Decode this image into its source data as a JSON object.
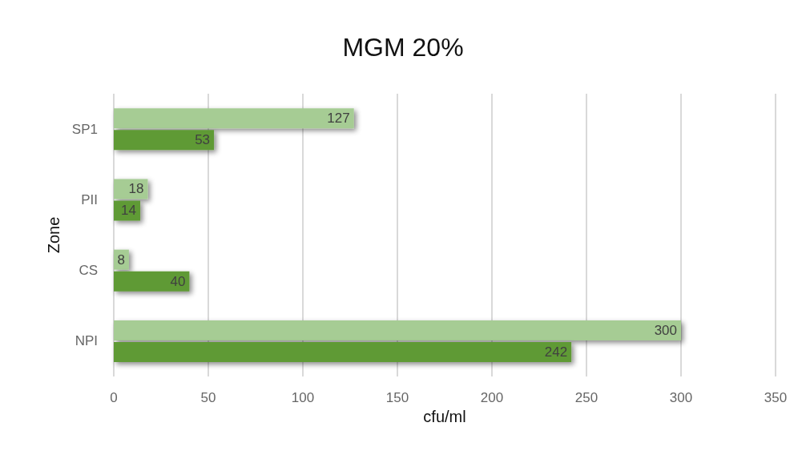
{
  "chart_data": {
    "type": "bar",
    "orientation": "horizontal",
    "title": "MGM 20%",
    "xlabel": "cfu/ml",
    "ylabel": "Zone",
    "categories": [
      "SP1",
      "PII",
      "CS",
      "NPI"
    ],
    "series": [
      {
        "color": "#a6cc94",
        "values": [
          127,
          18,
          8,
          300
        ]
      },
      {
        "color": "#5f9a36",
        "values": [
          53,
          14,
          40,
          242
        ]
      }
    ],
    "xlim": [
      0,
      350
    ],
    "xticks": [
      0,
      50,
      100,
      150,
      200,
      250,
      300,
      350
    ],
    "grid": "x",
    "data_labels": true
  }
}
